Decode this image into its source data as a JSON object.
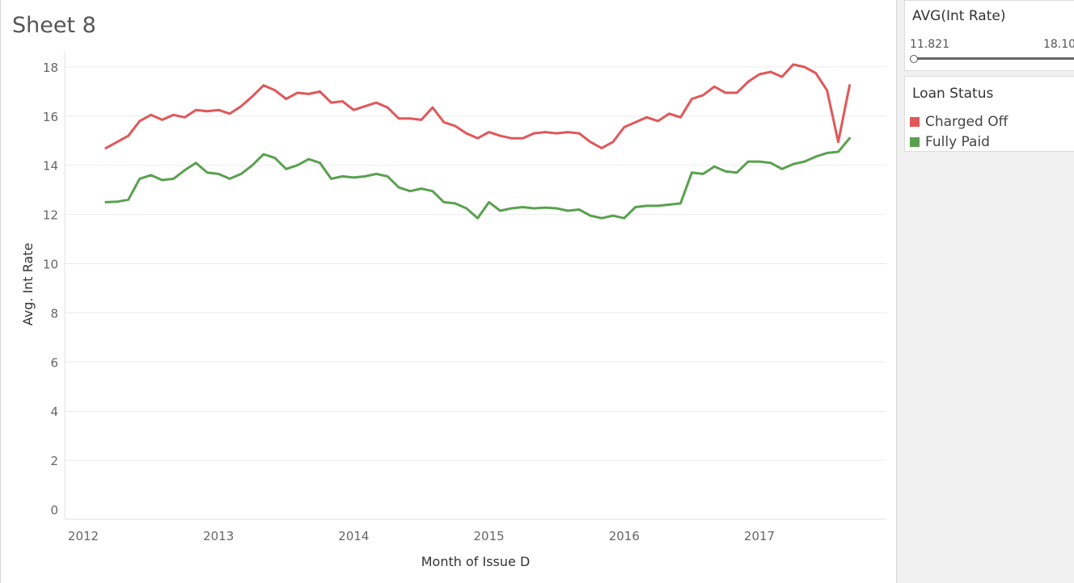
{
  "sheet_title": "Sheet 8",
  "filter": {
    "title": "AVG(Int Rate)",
    "range_min": "11.821",
    "range_max": "18.10"
  },
  "legend": {
    "title": "Loan Status",
    "items": [
      {
        "label": "Charged Off",
        "color": "#e15759"
      },
      {
        "label": "Fully Paid",
        "color": "#59a14f"
      }
    ]
  },
  "chart_data": {
    "type": "line",
    "xlabel": "Month of Issue D",
    "ylabel": "Avg. Int Rate",
    "x_tick_labels": [
      "2012",
      "2013",
      "2014",
      "2015",
      "2016",
      "2017"
    ],
    "y_tick_labels": [
      "0",
      "2",
      "4",
      "6",
      "8",
      "10",
      "12",
      "14",
      "16",
      "18"
    ],
    "ylim": [
      0,
      19
    ],
    "xlim": [
      "2012-01",
      "2017-11"
    ],
    "grid": true,
    "x": [
      "2012-03",
      "2012-04",
      "2012-05",
      "2012-06",
      "2012-07",
      "2012-08",
      "2012-09",
      "2012-10",
      "2012-11",
      "2012-12",
      "2013-01",
      "2013-02",
      "2013-03",
      "2013-04",
      "2013-05",
      "2013-06",
      "2013-07",
      "2013-08",
      "2013-09",
      "2013-10",
      "2013-11",
      "2013-12",
      "2014-01",
      "2014-02",
      "2014-03",
      "2014-04",
      "2014-05",
      "2014-06",
      "2014-07",
      "2014-08",
      "2014-09",
      "2014-10",
      "2014-11",
      "2014-12",
      "2015-01",
      "2015-02",
      "2015-03",
      "2015-04",
      "2015-05",
      "2015-06",
      "2015-07",
      "2015-08",
      "2015-09",
      "2015-10",
      "2015-11",
      "2015-12",
      "2016-01",
      "2016-02",
      "2016-03",
      "2016-04",
      "2016-05",
      "2016-06",
      "2016-07",
      "2016-08",
      "2016-09",
      "2016-10",
      "2016-11",
      "2016-12",
      "2017-01",
      "2017-02",
      "2017-03",
      "2017-04",
      "2017-05",
      "2017-06",
      "2017-07",
      "2017-08",
      "2017-09"
    ],
    "series": [
      {
        "name": "Charged Off",
        "color": "#e15759",
        "values": [
          14.7,
          14.95,
          15.2,
          15.8,
          16.05,
          15.85,
          16.05,
          15.95,
          16.25,
          16.2,
          16.25,
          16.1,
          16.4,
          16.8,
          17.25,
          17.05,
          16.7,
          16.95,
          16.9,
          17.0,
          16.55,
          16.6,
          16.25,
          16.4,
          16.55,
          16.35,
          15.9,
          15.9,
          15.85,
          16.35,
          15.75,
          15.6,
          15.3,
          15.1,
          15.35,
          15.2,
          15.1,
          15.1,
          15.3,
          15.35,
          15.3,
          15.35,
          15.3,
          14.95,
          14.7,
          14.95,
          15.55,
          15.75,
          15.95,
          15.8,
          16.1,
          15.95,
          16.7,
          16.85,
          17.2,
          16.95,
          16.95,
          17.4,
          17.7,
          17.8,
          17.6,
          18.1,
          18.0,
          17.75,
          17.05,
          14.95,
          17.25
        ]
      },
      {
        "name": "Fully Paid",
        "color": "#59a14f",
        "values": [
          12.5,
          12.52,
          12.6,
          13.45,
          13.6,
          13.4,
          13.45,
          13.8,
          14.1,
          13.7,
          13.65,
          13.45,
          13.65,
          14.0,
          14.45,
          14.3,
          13.85,
          14.0,
          14.25,
          14.1,
          13.45,
          13.55,
          13.5,
          13.55,
          13.65,
          13.55,
          13.1,
          12.95,
          13.05,
          12.95,
          12.5,
          12.45,
          12.25,
          11.85,
          12.5,
          12.15,
          12.25,
          12.3,
          12.25,
          12.28,
          12.25,
          12.15,
          12.2,
          11.95,
          11.85,
          11.95,
          11.85,
          12.3,
          12.35,
          12.35,
          12.4,
          12.45,
          13.7,
          13.65,
          13.95,
          13.75,
          13.7,
          14.15,
          14.15,
          14.1,
          13.85,
          14.05,
          14.15,
          14.35,
          14.5,
          14.55,
          15.1
        ]
      }
    ]
  }
}
